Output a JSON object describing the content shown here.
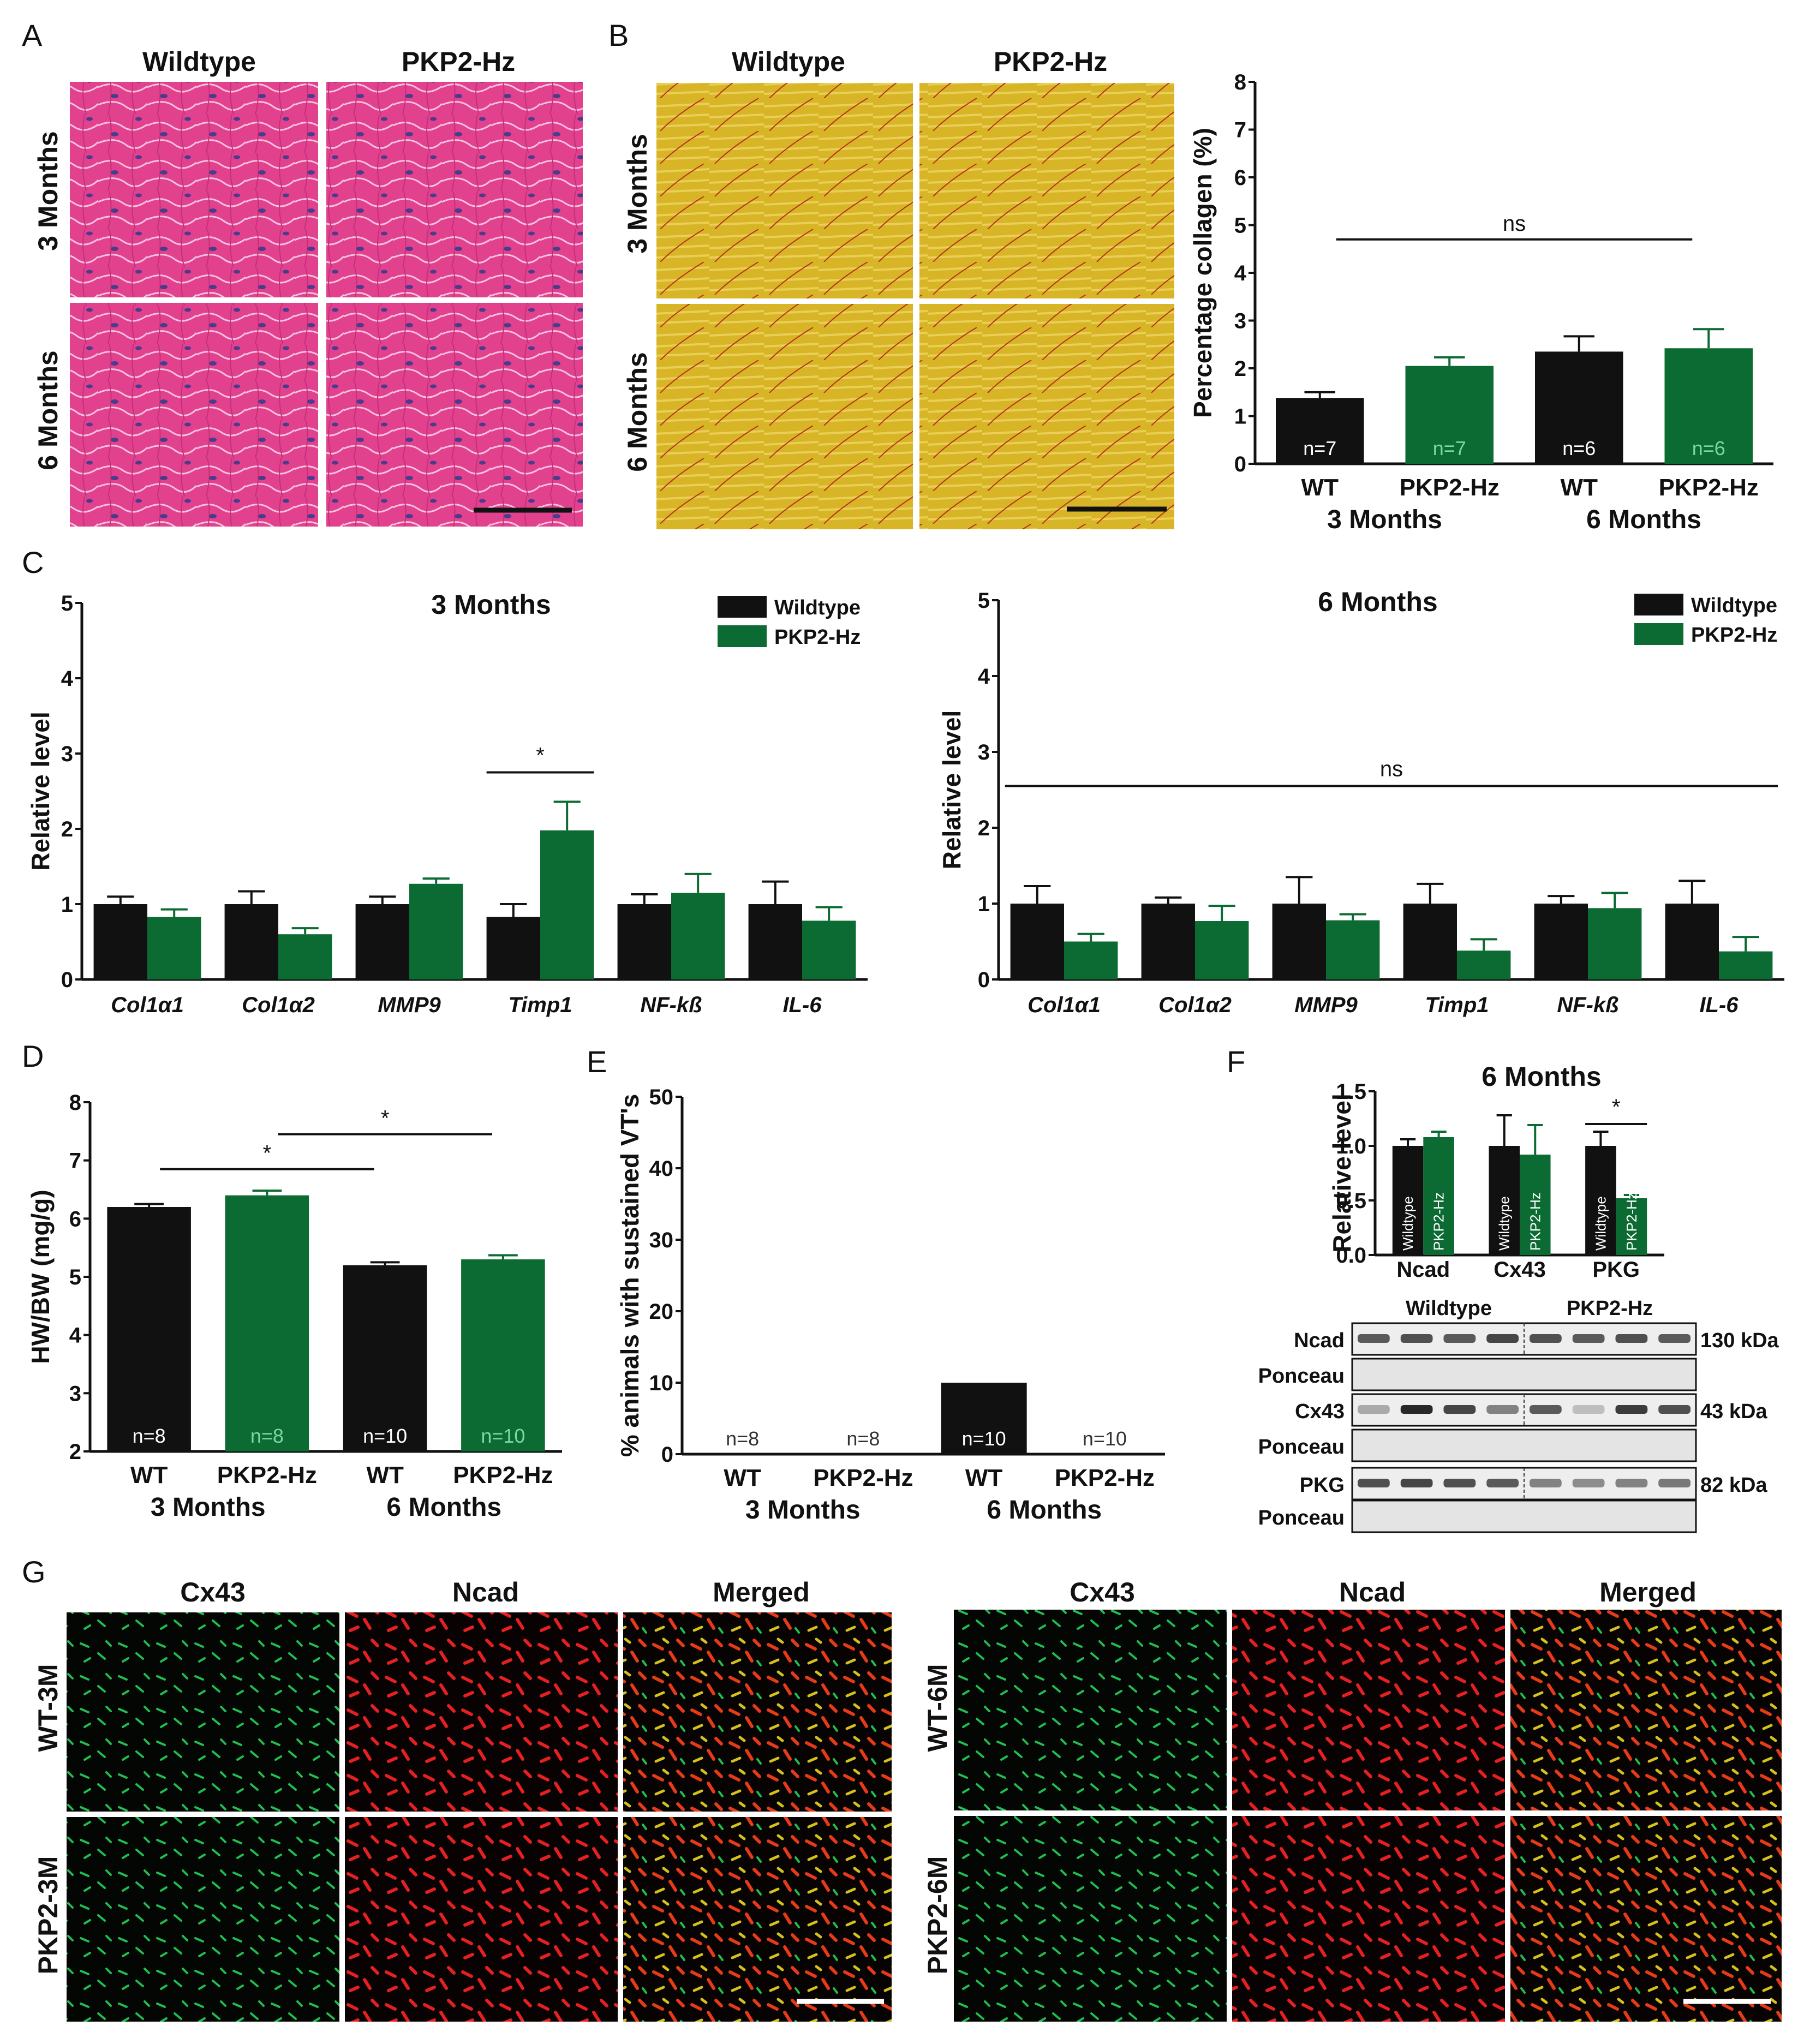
{
  "panel_letters": {
    "a": "A",
    "b": "B",
    "c": "C",
    "d": "D",
    "e": "E",
    "f": "F",
    "g": "G"
  },
  "colors": {
    "wildtype": "#111111",
    "pkp2": "#0c6b33",
    "he_stain": "#e0408f",
    "picro_stain": "#d9b525",
    "fluor_green": "#1fbf4f",
    "fluor_red": "#e62020"
  },
  "panel_a": {
    "col_wt": "Wildtype",
    "col_pkp2": "PKP2-Hz",
    "row_3m": "3 Months",
    "row_6m": "6 Months"
  },
  "panel_b": {
    "col_wt": "Wildtype",
    "col_pkp2": "PKP2-Hz",
    "row_3m": "3 Months",
    "row_6m": "6 Months"
  },
  "panel_g": {
    "cols": [
      "Cx43",
      "Ncad",
      "Merged"
    ],
    "rows_left": [
      "WT-3M",
      "PKP2-3M"
    ],
    "rows_right": [
      "WT-6M",
      "PKP2-6M"
    ]
  },
  "panel_f_blot": {
    "title": "6 Months",
    "group_wt": "Wildtype",
    "group_pkp2": "PKP2-Hz",
    "rows": [
      {
        "label": "Ncad",
        "size": "130 kDa",
        "wt": [
          0.7,
          0.75,
          0.7,
          0.8
        ],
        "pkp2": [
          0.75,
          0.7,
          0.75,
          0.7
        ]
      },
      {
        "label": "Ponceau",
        "size": "",
        "wt": [],
        "pkp2": []
      },
      {
        "label": "Cx43",
        "size": "43 kDa",
        "wt": [
          0.3,
          0.95,
          0.8,
          0.5
        ],
        "pkp2": [
          0.7,
          0.2,
          0.85,
          0.75
        ]
      },
      {
        "label": "Ponceau",
        "size": "",
        "wt": [],
        "pkp2": []
      },
      {
        "label": "PKG",
        "size": "82 kDa",
        "wt": [
          0.75,
          0.8,
          0.75,
          0.7
        ],
        "pkp2": [
          0.5,
          0.45,
          0.5,
          0.55
        ]
      },
      {
        "label": "Ponceau",
        "size": "",
        "wt": [],
        "pkp2": []
      }
    ]
  },
  "chart_data": [
    {
      "id": "B",
      "type": "bar",
      "ylabel": "Percentage collagen (%)",
      "ylim": [
        0,
        8
      ],
      "yticks": [
        0,
        1,
        2,
        3,
        4,
        5,
        6,
        7,
        8
      ],
      "categories": [
        "WT",
        "PKP2-Hz",
        "WT",
        "PKP2-Hz"
      ],
      "groups": [
        "3 Months",
        "6 Months"
      ],
      "values": [
        1.38,
        2.05,
        2.35,
        2.42
      ],
      "errors": [
        0.12,
        0.18,
        0.32,
        0.4
      ],
      "colors": [
        "#111111",
        "#0c6b33",
        "#111111",
        "#0c6b33"
      ],
      "n_labels": [
        "n=7",
        "n=7",
        "n=6",
        "n=6"
      ],
      "annotations": [
        {
          "text": "ns",
          "from": 0,
          "to": 3,
          "y": 4.7
        }
      ]
    },
    {
      "id": "C-3M",
      "type": "bar",
      "title": "3 Months",
      "ylabel": "Relative level",
      "ylim": [
        0,
        5
      ],
      "yticks": [
        0,
        1,
        2,
        3,
        4,
        5
      ],
      "categories": [
        "Col1α1",
        "Col1α2",
        "MMP9",
        "Timp1",
        "NF-kß",
        "IL-6"
      ],
      "series": [
        {
          "name": "Wildtype",
          "color": "#111111",
          "values": [
            1.0,
            1.0,
            1.0,
            0.83,
            1.0,
            1.0
          ],
          "errors": [
            0.1,
            0.17,
            0.1,
            0.17,
            0.13,
            0.3
          ]
        },
        {
          "name": "PKP2-Hz",
          "color": "#0c6b33",
          "values": [
            0.83,
            0.6,
            1.27,
            1.98,
            1.15,
            0.78
          ],
          "errors": [
            0.1,
            0.08,
            0.07,
            0.38,
            0.25,
            0.18
          ]
        }
      ],
      "annotations": [
        {
          "text": "*",
          "cat": 3,
          "y": 2.75
        }
      ]
    },
    {
      "id": "C-6M",
      "type": "bar",
      "title": "6 Months",
      "ylabel": "Relative level",
      "ylim": [
        0,
        5
      ],
      "yticks": [
        0,
        1,
        2,
        3,
        4,
        5
      ],
      "categories": [
        "Col1α1",
        "Col1α2",
        "MMP9",
        "Timp1",
        "NF-kß",
        "IL-6"
      ],
      "series": [
        {
          "name": "Wildtype",
          "color": "#111111",
          "values": [
            1.0,
            1.0,
            1.0,
            1.0,
            1.0,
            1.0
          ],
          "errors": [
            0.23,
            0.08,
            0.35,
            0.26,
            0.1,
            0.3
          ]
        },
        {
          "name": "PKP2-Hz",
          "color": "#0c6b33",
          "values": [
            0.5,
            0.77,
            0.78,
            0.38,
            0.94,
            0.37
          ],
          "errors": [
            0.1,
            0.2,
            0.08,
            0.15,
            0.2,
            0.19
          ]
        }
      ],
      "annotations": [
        {
          "text": "ns",
          "from": 0,
          "to": 5,
          "y": 2.55
        }
      ]
    },
    {
      "id": "D",
      "type": "bar",
      "ylabel": "HW/BW (mg/g)",
      "ylim": [
        2,
        8
      ],
      "yticks": [
        2,
        3,
        4,
        5,
        6,
        7,
        8
      ],
      "categories": [
        "WT",
        "PKP2-Hz",
        "WT",
        "PKP2-Hz"
      ],
      "groups": [
        "3 Months",
        "6 Months"
      ],
      "values": [
        6.2,
        6.4,
        5.2,
        5.3
      ],
      "errors": [
        0.05,
        0.08,
        0.05,
        0.07
      ],
      "colors": [
        "#111111",
        "#0c6b33",
        "#111111",
        "#0c6b33"
      ],
      "n_labels": [
        "n=8",
        "n=8",
        "n=10",
        "n=10"
      ],
      "annotations": [
        {
          "text": "*",
          "from": 0,
          "to": 2,
          "y": 6.85
        },
        {
          "text": "*",
          "from": 1,
          "to": 3,
          "y": 7.45
        }
      ]
    },
    {
      "id": "E",
      "type": "bar",
      "ylabel": "% animals with sustained VT's",
      "ylim": [
        0,
        50
      ],
      "yticks": [
        0,
        10,
        20,
        30,
        40,
        50
      ],
      "categories": [
        "WT",
        "PKP2-Hz",
        "WT",
        "PKP2-Hz"
      ],
      "groups": [
        "3 Months",
        "6 Months"
      ],
      "values": [
        0,
        0,
        10,
        0
      ],
      "colors": [
        "#111111",
        "#0c6b33",
        "#111111",
        "#0c6b33"
      ],
      "n_labels": [
        "n=8",
        "n=8",
        "n=10",
        "n=10"
      ]
    },
    {
      "id": "F",
      "type": "bar",
      "title": "6 Months",
      "ylabel": "Relative level",
      "ylim": [
        0,
        1.5
      ],
      "yticks": [
        0.0,
        0.5,
        1.0,
        1.5
      ],
      "ytick_labels": [
        "0.0",
        "0.5",
        "1.0",
        "1.5"
      ],
      "categories": [
        "Ncad",
        "Cx43",
        "PKG"
      ],
      "series": [
        {
          "name": "Wildtype",
          "color": "#111111",
          "values": [
            1.0,
            1.0,
            1.0
          ],
          "errors": [
            0.06,
            0.28,
            0.13
          ]
        },
        {
          "name": "PKP2-Hz",
          "color": "#0c6b33",
          "values": [
            1.08,
            0.92,
            0.52
          ],
          "errors": [
            0.05,
            0.27,
            0.03
          ]
        }
      ],
      "annotations": [
        {
          "text": "*",
          "cat": 2,
          "y": 1.2
        }
      ]
    }
  ]
}
